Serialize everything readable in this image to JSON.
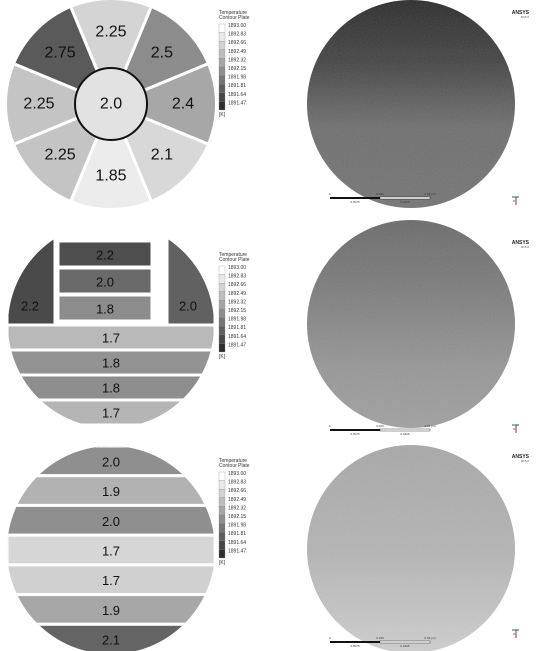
{
  "brand": {
    "name": "ANSYS",
    "sub": "R15.0"
  },
  "legend": {
    "title_line1": "Temperature",
    "title_line2": "Contour Plate",
    "unit": "[K]",
    "values": [
      "1893.00",
      "1892.83",
      "1892.66",
      "1892.49",
      "1892.32",
      "1892.15",
      "1891.98",
      "1891.81",
      "1891.64",
      "1891.47"
    ],
    "colors": [
      "#ffffff",
      "#e9e9e9",
      "#d3d3d3",
      "#bdbdbd",
      "#a5a5a5",
      "#8e8e8e",
      "#767676",
      "#5e5e5e",
      "#474747",
      "#2e2e2e"
    ]
  },
  "scale_bar": {
    "top_labels": [
      "0",
      "0.015",
      "0.03 (m)"
    ],
    "bottom_labels": [
      "0.0075",
      "0.0225"
    ]
  },
  "pattern1": {
    "center": {
      "label": "2.0",
      "color": "#e2e2e2"
    },
    "sectors": [
      {
        "label": "2.25",
        "color": "#d4d4d4"
      },
      {
        "label": "2.5",
        "color": "#8c8c8c"
      },
      {
        "label": "2.4",
        "color": "#a7a7a7"
      },
      {
        "label": "2.1",
        "color": "#d8d8d8"
      },
      {
        "label": "1.85",
        "color": "#ececec"
      },
      {
        "label": "2.25",
        "color": "#c4c4c4"
      },
      {
        "label": "2.25",
        "color": "#c4c4c4"
      },
      {
        "label": "2.75",
        "color": "#5a5a5a"
      }
    ]
  },
  "pattern2": {
    "top_blocks": [
      {
        "label": "2.2",
        "color": "#4e4e4e"
      },
      {
        "label": "2.0",
        "color": "#6a6a6a"
      },
      {
        "label": "1.8",
        "color": "#8c8c8c"
      }
    ],
    "left_block": {
      "label": "2.2",
      "color": "#4a4a4a"
    },
    "right_block": {
      "label": "2.0",
      "color": "#616161"
    },
    "bands": [
      {
        "label": "1.7",
        "color": "#b9b9b9"
      },
      {
        "label": "1.8",
        "color": "#939393"
      },
      {
        "label": "1.8",
        "color": "#8e8e8e"
      },
      {
        "label": "1.7",
        "color": "#b5b5b5"
      }
    ]
  },
  "pattern3": {
    "bands": [
      {
        "label": "2.0",
        "color": "#8f8f8f"
      },
      {
        "label": "1.9",
        "color": "#b2b2b2"
      },
      {
        "label": "2.0",
        "color": "#8f8f8f"
      },
      {
        "label": "1.7",
        "color": "#d6d6d6"
      },
      {
        "label": "1.7",
        "color": "#d0d0d0"
      },
      {
        "label": "1.9",
        "color": "#a7a7a7"
      },
      {
        "label": "2.1",
        "color": "#646464"
      }
    ]
  },
  "results": [
    {
      "fill": "#6a6a6a"
    },
    {
      "fill": "#8a8a8a"
    },
    {
      "fill": "#b5b5b5"
    }
  ]
}
